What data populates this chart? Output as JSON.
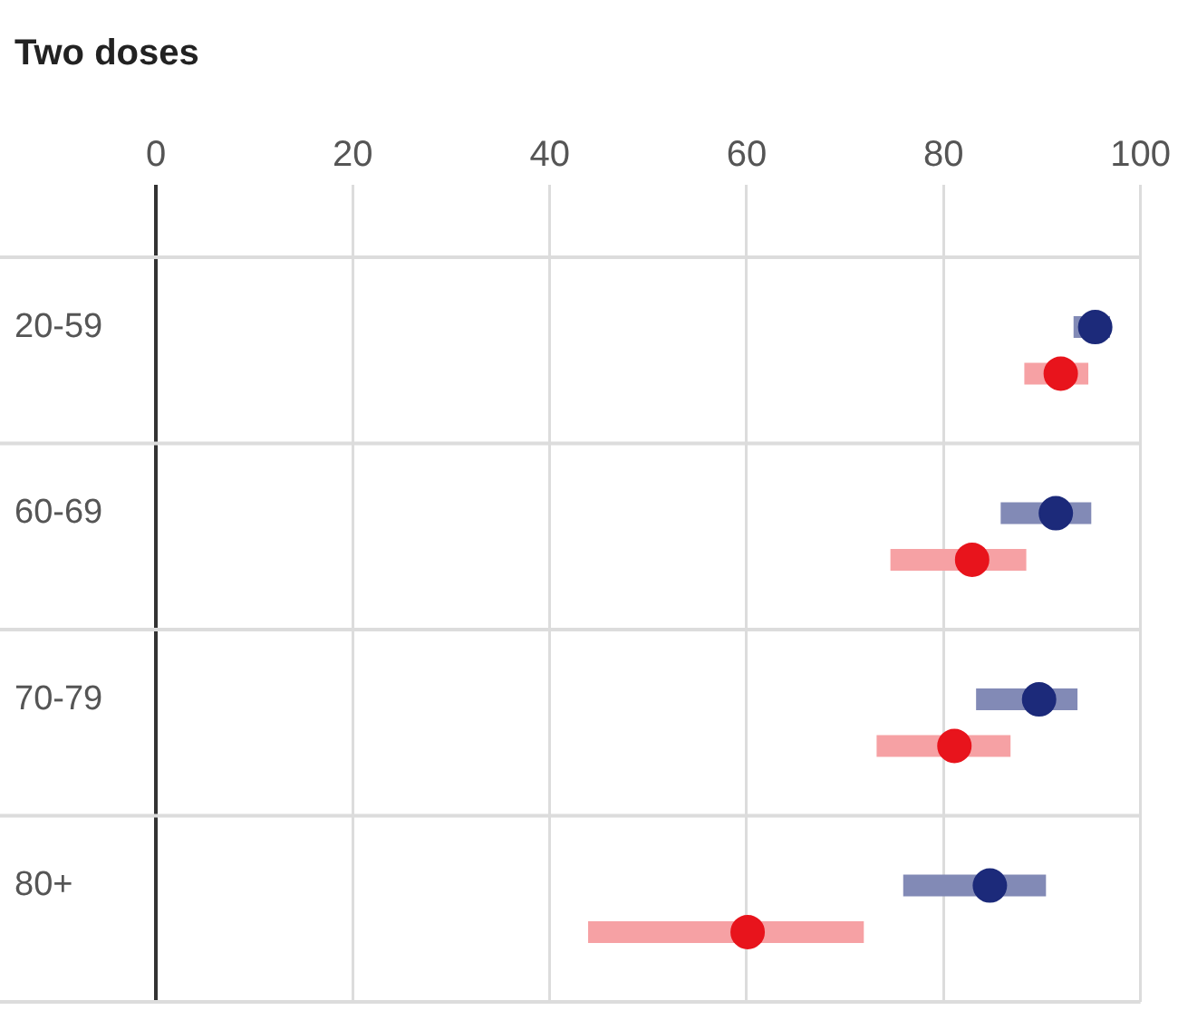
{
  "chart_data": {
    "type": "scatter",
    "orientation": "horizontal",
    "title": "Two doses",
    "categories": [
      "20-59",
      "60-69",
      "70-79",
      "80+"
    ],
    "series": [
      {
        "color": "#1c2a7a",
        "values": [
          95.4,
          91.4,
          89.7,
          84.7
        ],
        "errors": [
          [
            93.2,
            96.9
          ],
          [
            85.8,
            95.0
          ],
          [
            83.3,
            93.6
          ],
          [
            75.9,
            90.4
          ]
        ]
      },
      {
        "color": "#e8141c",
        "values": [
          91.9,
          82.9,
          81.1,
          60.1
        ],
        "errors": [
          [
            88.2,
            94.7
          ],
          [
            74.6,
            88.4
          ],
          [
            73.2,
            86.8
          ],
          [
            43.9,
            71.9
          ]
        ]
      }
    ],
    "xlim": [
      0,
      100
    ],
    "xticks": [
      0,
      20,
      40,
      60,
      80,
      100
    ],
    "grid": true,
    "marker": "circle"
  }
}
